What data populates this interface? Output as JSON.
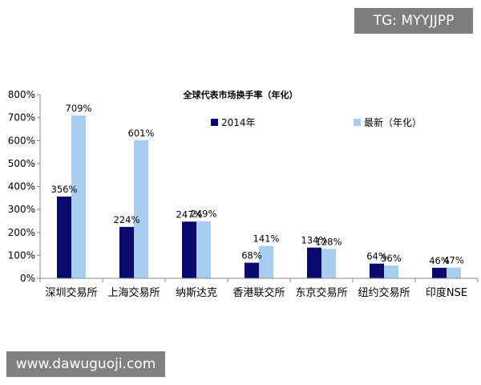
{
  "watermarks": {
    "top_right": "TG: MYYJJPP",
    "bottom_left": "www.dawuguoji.com"
  },
  "chart_data": {
    "type": "bar",
    "title": "全球代表市场换手率（年化）",
    "categories": [
      "深圳交易所",
      "上海交易所",
      "纳斯达克",
      "香港联交所",
      "东京交易所",
      "纽约交易所",
      "印度NSE"
    ],
    "series": [
      {
        "name": "2014年",
        "values": [
          356,
          224,
          247,
          68,
          134,
          64,
          46
        ],
        "labels": [
          "356%",
          "224%",
          "247%",
          "68%",
          "134%",
          "64%",
          "46%"
        ],
        "color": "#0a0a6e"
      },
      {
        "name": "最新（年化）",
        "values": [
          709,
          601,
          249,
          141,
          128,
          56,
          47
        ],
        "labels": [
          "709%",
          "601%",
          "249%",
          "141%",
          "128%",
          "56%",
          "47%"
        ],
        "color": "#a8cdf0"
      }
    ],
    "yticks": [
      "0%",
      "100%",
      "200%",
      "300%",
      "400%",
      "500%",
      "600%",
      "700%",
      "800%"
    ],
    "ylim": [
      0,
      800
    ],
    "grid": false,
    "legend_position": "top"
  }
}
